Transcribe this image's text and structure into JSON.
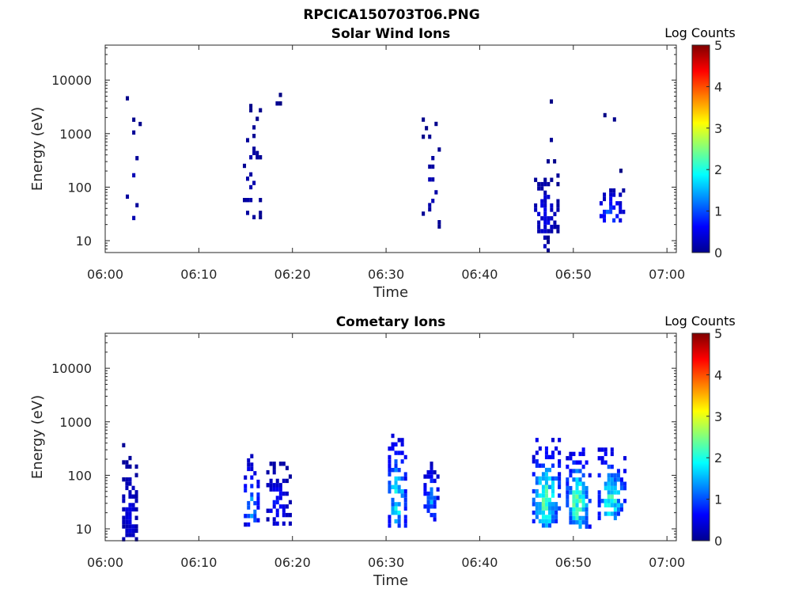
{
  "figure": {
    "title": "RPCICA150703T06.PNG",
    "colormap": "jet"
  },
  "chart_data": [
    {
      "type": "heatmap",
      "title": "Solar Wind Ions",
      "xlabel": "Time",
      "ylabel": "Energy (eV)",
      "x_ticks": [
        "06:00",
        "06:10",
        "06:20",
        "06:30",
        "06:40",
        "06:50",
        "07:00"
      ],
      "x_range_minutes": [
        0,
        61
      ],
      "y_scale": "log",
      "y_ticks": [
        "10",
        "100",
        "1000",
        "10000"
      ],
      "y_range": [
        6,
        45000
      ],
      "colorbar": {
        "title": "Log Counts",
        "ticks": [
          "0",
          "1",
          "2",
          "3",
          "4",
          "5"
        ],
        "range": [
          0,
          5
        ]
      },
      "blobs": [
        {
          "t0": 2.2,
          "t1": 3.8,
          "e0": 10,
          "e1": 5000,
          "peak": 0.25,
          "density": 0.12
        },
        {
          "t0": 14.7,
          "t1": 16.6,
          "e0": 18,
          "e1": 5200,
          "peak": 0.25,
          "density": 0.14
        },
        {
          "t0": 18.2,
          "t1": 18.6,
          "e0": 2700,
          "e1": 5800,
          "peak": 0.1,
          "density": 0.4
        },
        {
          "t0": 33.8,
          "t1": 35.8,
          "e0": 18,
          "e1": 2000,
          "peak": 0.25,
          "density": 0.12
        },
        {
          "t0": 45.8,
          "t1": 48.2,
          "e0": 15,
          "e1": 180,
          "peak": 0.55,
          "density": 0.75
        },
        {
          "t0": 46.8,
          "t1": 47.2,
          "e0": 6,
          "e1": 18,
          "peak": 0.3,
          "density": 0.8
        },
        {
          "t0": 46.8,
          "t1": 48.4,
          "e0": 200,
          "e1": 6300,
          "peak": 0.1,
          "density": 0.1
        },
        {
          "t0": 52.8,
          "t1": 55.2,
          "e0": 22,
          "e1": 95,
          "peak": 1.05,
          "density": 0.8
        },
        {
          "t0": 53.2,
          "t1": 55.0,
          "e0": 180,
          "e1": 7300,
          "peak": 0.1,
          "density": 0.1
        }
      ]
    },
    {
      "type": "heatmap",
      "title": "Cometary Ions",
      "xlabel": "Time",
      "ylabel": "Energy (eV)",
      "x_ticks": [
        "06:00",
        "06:10",
        "06:20",
        "06:30",
        "06:40",
        "06:50",
        "07:00"
      ],
      "x_range_minutes": [
        0,
        61
      ],
      "y_scale": "log",
      "y_ticks": [
        "10",
        "100",
        "1000",
        "10000"
      ],
      "y_range": [
        6,
        45000
      ],
      "colorbar": {
        "title": "Log Counts",
        "ticks": [
          "0",
          "1",
          "2",
          "3",
          "4",
          "5"
        ],
        "range": [
          0,
          5
        ]
      },
      "blobs": [
        {
          "t0": 1.8,
          "t1": 3.5,
          "e0": 6,
          "e1": 400,
          "peak": 0.5,
          "density": 0.75
        },
        {
          "t0": 14.8,
          "t1": 16.5,
          "e0": 12,
          "e1": 250,
          "peak": 1.4,
          "density": 0.75
        },
        {
          "t0": 17.2,
          "t1": 19.8,
          "e0": 12,
          "e1": 180,
          "peak": 0.75,
          "density": 0.6
        },
        {
          "t0": 30.2,
          "t1": 32.2,
          "e0": 12,
          "e1": 600,
          "peak": 1.9,
          "density": 0.75
        },
        {
          "t0": 34.0,
          "t1": 35.6,
          "e0": 15,
          "e1": 180,
          "peak": 1.3,
          "density": 0.8
        },
        {
          "t0": 45.6,
          "t1": 48.6,
          "e0": 12,
          "e1": 500,
          "peak": 2.2,
          "density": 0.9
        },
        {
          "t0": 49.2,
          "t1": 51.8,
          "e0": 12,
          "e1": 330,
          "peak": 2.3,
          "density": 0.9
        },
        {
          "t0": 52.6,
          "t1": 55.4,
          "e0": 15,
          "e1": 330,
          "peak": 2.1,
          "density": 0.85
        }
      ]
    }
  ]
}
